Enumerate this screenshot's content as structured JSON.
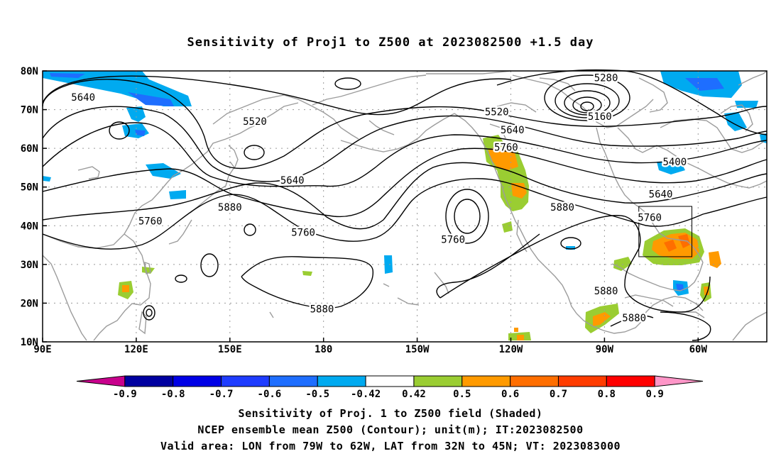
{
  "title": "Sensitivity of Proj1 to Z500 at 2023082500 +1.5 day",
  "lat_labels": [
    "80N",
    "70N",
    "60N",
    "50N",
    "40N",
    "30N",
    "20N",
    "10N"
  ],
  "lon_labels": [
    "90E",
    "120E",
    "150E",
    "180",
    "150W",
    "120W",
    "90W",
    "60W"
  ],
  "contour_labels": [
    {
      "text": "5640",
      "lon": 103,
      "lat": 73.2
    },
    {
      "text": "5520",
      "lon": 158,
      "lat": 67
    },
    {
      "text": "5520",
      "lon": -124.5,
      "lat": 69.5
    },
    {
      "text": "5280",
      "lon": -89.5,
      "lat": 78.3
    },
    {
      "text": "5160",
      "lon": -91.5,
      "lat": 68.3
    },
    {
      "text": "5400",
      "lon": -67.5,
      "lat": 56.5
    },
    {
      "text": "5640",
      "lon": -119.5,
      "lat": 64.8
    },
    {
      "text": "5760",
      "lon": -121.5,
      "lat": 60.3
    },
    {
      "text": "5640",
      "lon": 170,
      "lat": 51.8
    },
    {
      "text": "5640",
      "lon": -72,
      "lat": 48.2
    },
    {
      "text": "5880",
      "lon": 150,
      "lat": 44.8
    },
    {
      "text": "5880",
      "lon": -103.5,
      "lat": 44.8
    },
    {
      "text": "5760",
      "lon": 124.5,
      "lat": 41.2
    },
    {
      "text": "5760",
      "lon": -75.5,
      "lat": 42.2
    },
    {
      "text": "5760",
      "lon": 173.5,
      "lat": 38.3
    },
    {
      "text": "5760",
      "lon": -138.5,
      "lat": 36.5
    },
    {
      "text": "5880",
      "lon": 179.5,
      "lat": 18.5
    },
    {
      "text": "5880",
      "lon": -89.5,
      "lat": 23.2
    },
    {
      "text": "5880",
      "lon": -80.5,
      "lat": 16.2
    }
  ],
  "valid_area": {
    "lon_min": -79,
    "lon_max": -62,
    "lat_min": 32,
    "lat_max": 45
  },
  "colorbar": {
    "labels": [
      "-0.9",
      "-0.8",
      "-0.7",
      "-0.6",
      "-0.5",
      "-0.42",
      "0.42",
      "0.5",
      "0.6",
      "0.7",
      "0.8",
      "0.9"
    ],
    "colors": [
      "#c8008c",
      "#0000a0",
      "#0000e6",
      "#1e3cff",
      "#1e6eff",
      "#00aaf0",
      "#ffffff",
      "#9acd32",
      "#ff9a00",
      "#ff6e00",
      "#ff3c00",
      "#ff0000",
      "#ff96c8"
    ]
  },
  "footer": {
    "line1": "Sensitivity of Proj. 1 to Z500 field (Shaded)",
    "line2": "NCEP ensemble mean Z500 (Contour); unit(m); IT:2023082500",
    "line3": "Valid area: LON from 79W to 62W, LAT from 32N to 45N; VT: 2023083000"
  }
}
